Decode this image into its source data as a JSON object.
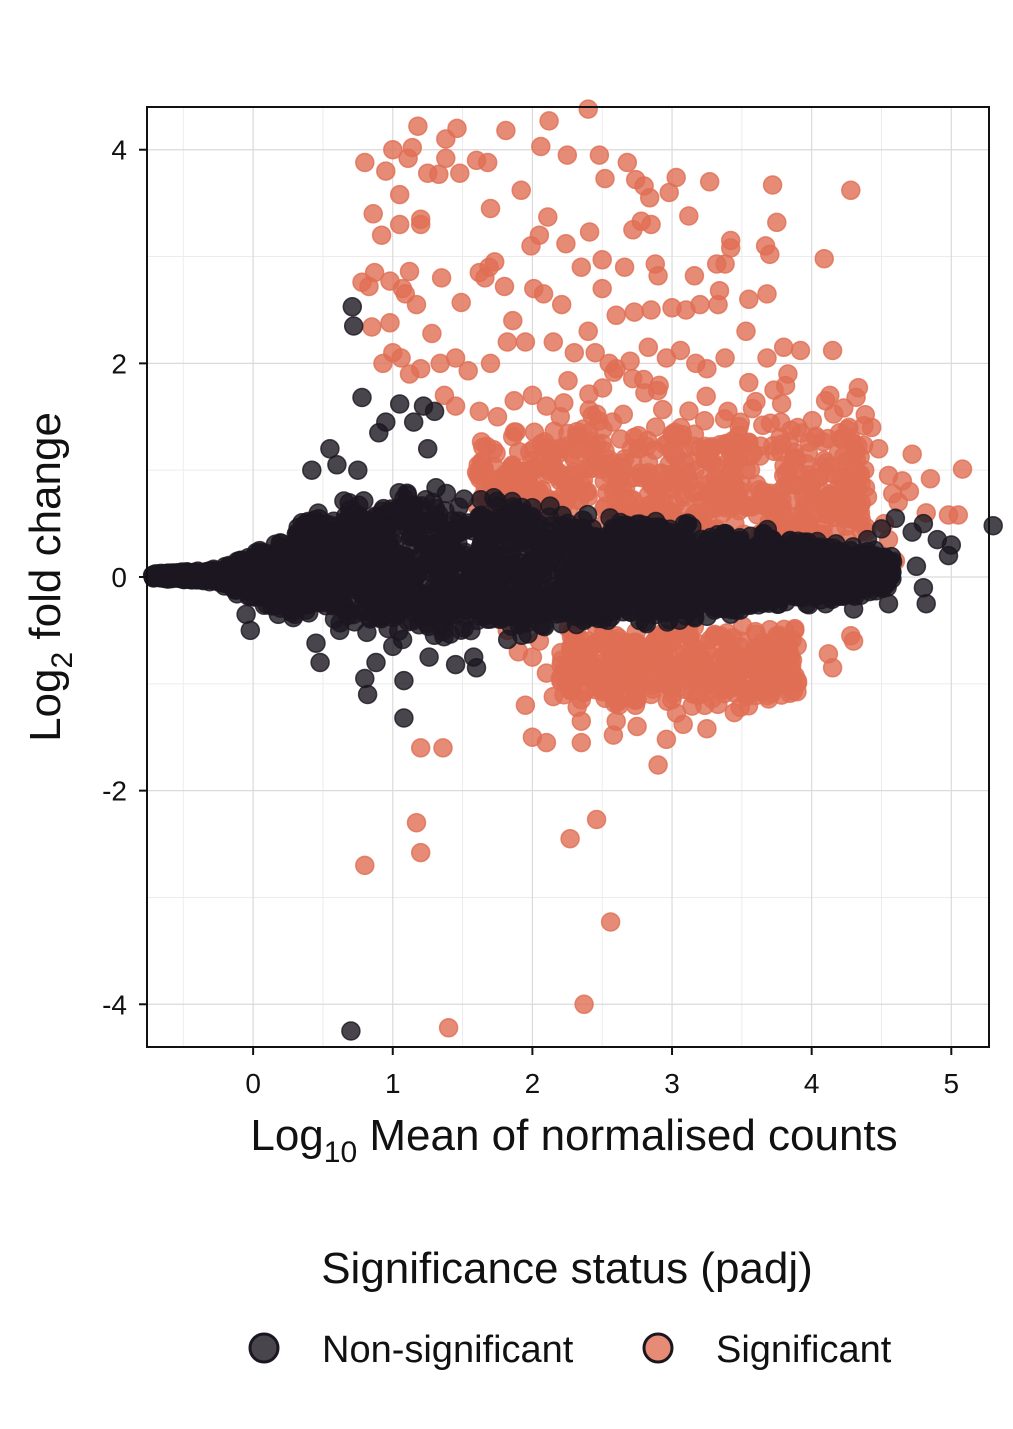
{
  "chart_data": {
    "type": "scatter",
    "title": "",
    "xlabel": {
      "base": "Log",
      "sub": "10",
      "rest": " Mean of normalised counts"
    },
    "ylabel": {
      "base": "Log",
      "sub": "2",
      "rest": " fold change"
    },
    "xlim": [
      -0.76,
      5.27
    ],
    "ylim": [
      -4.4,
      4.4
    ],
    "xticks": [
      0,
      1,
      2,
      3,
      4,
      5
    ],
    "xtick_labels": [
      "0",
      "1",
      "2",
      "3",
      "4",
      "5"
    ],
    "yticks": [
      -4,
      -2,
      0,
      2,
      4
    ],
    "ytick_labels": [
      "-4",
      "-2",
      "0",
      "2",
      "4"
    ],
    "grid": true,
    "legend": {
      "title": "Significance status (padj)",
      "placement": "bottom",
      "entries": [
        "Non-significant",
        "Significant"
      ]
    },
    "series": [
      {
        "name": "Non-significant",
        "color": "#1b1620",
        "dense_cloud": {
          "description_points": [
            [
              -0.72,
              0.0
            ],
            [
              -0.5,
              0.0
            ],
            [
              -0.3,
              0.02
            ],
            [
              0.0,
              0.02
            ],
            [
              0.2,
              0.05
            ],
            [
              0.5,
              0.1
            ],
            [
              1.0,
              0.15
            ],
            [
              1.5,
              0.1
            ],
            [
              2.0,
              0.05
            ],
            [
              3.0,
              0.05
            ],
            [
              4.0,
              0.02
            ],
            [
              4.5,
              0.0
            ]
          ]
        },
        "points": [
          [
            0.71,
            2.53
          ],
          [
            0.72,
            2.35
          ],
          [
            0.78,
            1.68
          ],
          [
            1.05,
            1.62
          ],
          [
            1.15,
            1.45
          ],
          [
            1.22,
            1.6
          ],
          [
            1.3,
            1.55
          ],
          [
            0.9,
            1.35
          ],
          [
            0.95,
            1.45
          ],
          [
            1.25,
            1.2
          ],
          [
            0.6,
            1.05
          ],
          [
            0.42,
            1.0
          ],
          [
            0.55,
            1.2
          ],
          [
            0.75,
            1.0
          ],
          [
            0.7,
            -4.25
          ],
          [
            0.82,
            -1.1
          ],
          [
            0.8,
            -0.95
          ],
          [
            1.08,
            -0.97
          ],
          [
            1.08,
            -1.32
          ],
          [
            0.48,
            -0.8
          ],
          [
            0.45,
            -0.62
          ],
          [
            0.62,
            -0.5
          ],
          [
            0.88,
            -0.8
          ],
          [
            1.26,
            -0.75
          ],
          [
            1.0,
            -0.65
          ],
          [
            1.45,
            -0.82
          ],
          [
            1.6,
            -0.85
          ],
          [
            1.58,
            -0.75
          ],
          [
            0.3,
            -0.35
          ],
          [
            -0.05,
            -0.35
          ],
          [
            -0.02,
            -0.5
          ],
          [
            0.18,
            -0.35
          ],
          [
            4.6,
            0.55
          ],
          [
            4.8,
            0.5
          ],
          [
            4.72,
            0.42
          ],
          [
            4.9,
            0.35
          ],
          [
            5.0,
            0.3
          ],
          [
            5.3,
            0.48
          ],
          [
            4.98,
            0.2
          ],
          [
            4.75,
            0.1
          ],
          [
            4.8,
            -0.1
          ],
          [
            4.82,
            -0.25
          ],
          [
            4.55,
            -0.25
          ],
          [
            4.3,
            -0.15
          ],
          [
            4.45,
            0.25
          ],
          [
            4.4,
            0.35
          ],
          [
            4.5,
            0.45
          ],
          [
            4.3,
            -0.3
          ],
          [
            4.1,
            -0.25
          ]
        ]
      },
      {
        "name": "Significant",
        "color": "#e06e54",
        "band_upper": {
          "x_range": [
            1.6,
            4.4
          ],
          "y_center": 0.85,
          "y_spread": 0.4
        },
        "band_lower": {
          "x_range": [
            2.2,
            3.9
          ],
          "y_center": -0.8,
          "y_spread": 0.2
        },
        "points": [
          [
            1.18,
            4.22
          ],
          [
            1.38,
            4.1
          ],
          [
            1.46,
            4.2
          ],
          [
            1.81,
            4.18
          ],
          [
            2.12,
            4.27
          ],
          [
            2.4,
            4.38
          ],
          [
            1.0,
            4.0
          ],
          [
            1.11,
            3.92
          ],
          [
            1.14,
            4.02
          ],
          [
            1.25,
            3.78
          ],
          [
            1.33,
            3.77
          ],
          [
            1.38,
            3.92
          ],
          [
            1.48,
            3.78
          ],
          [
            1.6,
            3.9
          ],
          [
            1.68,
            3.88
          ],
          [
            0.8,
            3.88
          ],
          [
            0.95,
            3.8
          ],
          [
            1.05,
            3.58
          ],
          [
            1.2,
            3.3
          ],
          [
            0.92,
            3.2
          ],
          [
            1.2,
            3.35
          ],
          [
            0.86,
            3.4
          ],
          [
            1.05,
            3.3
          ],
          [
            1.7,
            3.45
          ],
          [
            1.92,
            3.62
          ],
          [
            2.06,
            4.03
          ],
          [
            2.25,
            3.95
          ],
          [
            2.48,
            3.95
          ],
          [
            2.52,
            3.73
          ],
          [
            2.68,
            3.88
          ],
          [
            2.74,
            3.72
          ],
          [
            2.8,
            3.66
          ],
          [
            2.84,
            3.55
          ],
          [
            2.98,
            3.6
          ],
          [
            3.03,
            3.74
          ],
          [
            3.27,
            3.7
          ],
          [
            3.72,
            3.67
          ],
          [
            4.28,
            3.62
          ],
          [
            3.12,
            3.38
          ],
          [
            3.75,
            3.32
          ],
          [
            2.72,
            3.25
          ],
          [
            2.78,
            3.33
          ],
          [
            2.85,
            3.3
          ],
          [
            2.11,
            3.37
          ],
          [
            2.05,
            3.2
          ],
          [
            1.99,
            3.1
          ],
          [
            2.24,
            3.12
          ],
          [
            2.41,
            3.23
          ],
          [
            3.42,
            3.15
          ],
          [
            3.42,
            3.08
          ],
          [
            3.67,
            3.1
          ],
          [
            3.7,
            3.02
          ],
          [
            4.09,
            2.98
          ],
          [
            2.35,
            2.9
          ],
          [
            2.5,
            2.97
          ],
          [
            2.66,
            2.9
          ],
          [
            2.88,
            2.93
          ],
          [
            2.9,
            2.82
          ],
          [
            3.32,
            2.93
          ],
          [
            3.38,
            2.93
          ],
          [
            3.16,
            2.82
          ],
          [
            1.73,
            2.95
          ],
          [
            1.69,
            2.9
          ],
          [
            1.62,
            2.85
          ],
          [
            1.66,
            2.8
          ],
          [
            1.35,
            2.8
          ],
          [
            1.12,
            2.86
          ],
          [
            0.87,
            2.85
          ],
          [
            0.78,
            2.76
          ],
          [
            0.83,
            2.72
          ],
          [
            0.98,
            2.77
          ],
          [
            1.07,
            2.7
          ],
          [
            1.09,
            2.65
          ],
          [
            1.17,
            2.55
          ],
          [
            1.49,
            2.57
          ],
          [
            1.8,
            2.72
          ],
          [
            2.01,
            2.7
          ],
          [
            2.08,
            2.65
          ],
          [
            2.21,
            2.55
          ],
          [
            2.5,
            2.7
          ],
          [
            2.4,
            2.3
          ],
          [
            2.6,
            2.45
          ],
          [
            2.73,
            2.48
          ],
          [
            2.85,
            2.5
          ],
          [
            3.0,
            2.52
          ],
          [
            3.1,
            2.5
          ],
          [
            3.2,
            2.55
          ],
          [
            3.33,
            2.55
          ],
          [
            3.34,
            2.68
          ],
          [
            3.55,
            2.6
          ],
          [
            3.68,
            2.65
          ],
          [
            3.53,
            2.3
          ],
          [
            3.68,
            2.05
          ],
          [
            3.8,
            2.15
          ],
          [
            3.92,
            2.12
          ],
          [
            4.15,
            2.12
          ],
          [
            3.83,
            1.9
          ],
          [
            3.73,
            1.75
          ],
          [
            3.55,
            1.82
          ],
          [
            4.13,
            1.7
          ],
          [
            4.1,
            1.65
          ],
          [
            0.98,
            2.38
          ],
          [
            0.85,
            2.34
          ],
          [
            0.93,
            2.0
          ],
          [
            1.0,
            2.1
          ],
          [
            1.06,
            2.05
          ],
          [
            1.12,
            1.9
          ],
          [
            1.2,
            1.95
          ],
          [
            1.28,
            2.28
          ],
          [
            1.34,
            2.0
          ],
          [
            1.45,
            2.05
          ],
          [
            1.54,
            1.93
          ],
          [
            1.7,
            2.0
          ],
          [
            1.82,
            2.2
          ],
          [
            1.86,
            2.4
          ],
          [
            1.95,
            2.2
          ],
          [
            2.15,
            2.2
          ],
          [
            2.3,
            2.1
          ],
          [
            2.45,
            2.1
          ],
          [
            2.55,
            2.0
          ],
          [
            2.6,
            1.95
          ],
          [
            2.7,
            2.02
          ],
          [
            2.83,
            2.15
          ],
          [
            2.96,
            2.05
          ],
          [
            3.06,
            2.12
          ],
          [
            3.17,
            2.0
          ],
          [
            3.25,
            1.95
          ],
          [
            3.38,
            2.05
          ],
          [
            1.37,
            1.7
          ],
          [
            1.45,
            1.6
          ],
          [
            1.62,
            1.55
          ],
          [
            1.75,
            1.5
          ],
          [
            1.87,
            1.65
          ],
          [
            2.0,
            1.7
          ],
          [
            2.1,
            1.6
          ],
          [
            2.2,
            1.5
          ],
          [
            3.4,
            1.55
          ],
          [
            3.65,
            1.42
          ],
          [
            3.78,
            1.45
          ],
          [
            3.9,
            1.4
          ],
          [
            4.03,
            1.3
          ],
          [
            4.2,
            1.35
          ],
          [
            4.3,
            1.25
          ],
          [
            4.43,
            1.4
          ],
          [
            4.48,
            1.2
          ],
          [
            4.72,
            1.15
          ],
          [
            4.38,
            1.0
          ],
          [
            4.55,
            0.95
          ],
          [
            4.65,
            0.9
          ],
          [
            4.7,
            0.8
          ],
          [
            4.85,
            0.92
          ],
          [
            5.08,
            1.01
          ],
          [
            4.3,
            0.85
          ],
          [
            4.4,
            0.75
          ],
          [
            4.58,
            0.78
          ],
          [
            4.62,
            0.7
          ],
          [
            4.82,
            0.6
          ],
          [
            4.98,
            0.58
          ],
          [
            5.05,
            0.58
          ],
          [
            4.2,
            0.65
          ],
          [
            4.35,
            0.6
          ],
          [
            4.52,
            0.5
          ],
          [
            4.55,
            0.35
          ],
          [
            4.6,
            0.15
          ],
          [
            2.4,
            0.75
          ],
          [
            2.6,
            0.8
          ],
          [
            2.78,
            0.6
          ],
          [
            2.88,
            0.5
          ],
          [
            3.0,
            0.6
          ],
          [
            3.2,
            0.55
          ],
          [
            3.32,
            0.45
          ],
          [
            3.45,
            0.5
          ],
          [
            2.95,
            0.35
          ],
          [
            3.45,
            0.85
          ],
          [
            3.65,
            0.8
          ],
          [
            3.8,
            0.95
          ],
          [
            2.2,
            0.95
          ],
          [
            2.3,
            1.1
          ],
          [
            2.5,
            1.25
          ],
          [
            3.92,
            -0.05
          ],
          [
            4.05,
            -0.15
          ],
          [
            4.1,
            0.05
          ],
          [
            1.82,
            -0.5
          ],
          [
            1.9,
            -0.7
          ],
          [
            2.0,
            -0.75
          ],
          [
            2.05,
            -0.6
          ],
          [
            2.1,
            -0.9
          ],
          [
            2.2,
            -0.95
          ],
          [
            2.3,
            -0.85
          ],
          [
            2.4,
            -0.6
          ],
          [
            2.6,
            -0.55
          ],
          [
            2.7,
            -0.7
          ],
          [
            3.0,
            -0.6
          ],
          [
            3.3,
            -0.55
          ],
          [
            3.5,
            -0.6
          ],
          [
            3.62,
            -0.7
          ],
          [
            3.75,
            -0.55
          ],
          [
            3.85,
            -0.75
          ],
          [
            4.12,
            -0.72
          ],
          [
            4.15,
            -0.85
          ],
          [
            4.28,
            -0.55
          ],
          [
            4.3,
            -0.6
          ],
          [
            1.95,
            -1.2
          ],
          [
            2.15,
            -1.12
          ],
          [
            2.28,
            -1.05
          ],
          [
            2.35,
            -1.15
          ],
          [
            2.5,
            -1.05
          ],
          [
            2.62,
            -1.2
          ],
          [
            2.75,
            -1.15
          ],
          [
            2.85,
            -1.1
          ],
          [
            3.0,
            -1.15
          ],
          [
            3.08,
            -1.05
          ],
          [
            3.2,
            -1.1
          ],
          [
            3.4,
            -1.05
          ],
          [
            3.55,
            -1.05
          ],
          [
            3.68,
            -1.05
          ],
          [
            2.6,
            -1.35
          ],
          [
            2.75,
            -1.4
          ],
          [
            2.96,
            -1.52
          ],
          [
            3.08,
            -1.38
          ],
          [
            3.25,
            -1.42
          ],
          [
            2.58,
            -1.48
          ],
          [
            2.1,
            -1.55
          ],
          [
            2.35,
            -1.55
          ],
          [
            2.0,
            -1.5
          ],
          [
            1.2,
            -1.6
          ],
          [
            1.36,
            -1.6
          ],
          [
            2.9,
            -1.76
          ],
          [
            2.35,
            -1.35
          ],
          [
            1.17,
            -2.3
          ],
          [
            1.2,
            -2.58
          ],
          [
            0.8,
            -2.7
          ],
          [
            2.27,
            -2.45
          ],
          [
            2.46,
            -2.27
          ],
          [
            2.56,
            -3.23
          ],
          [
            2.37,
            -4.0
          ],
          [
            1.4,
            -4.22
          ]
        ]
      }
    ]
  }
}
